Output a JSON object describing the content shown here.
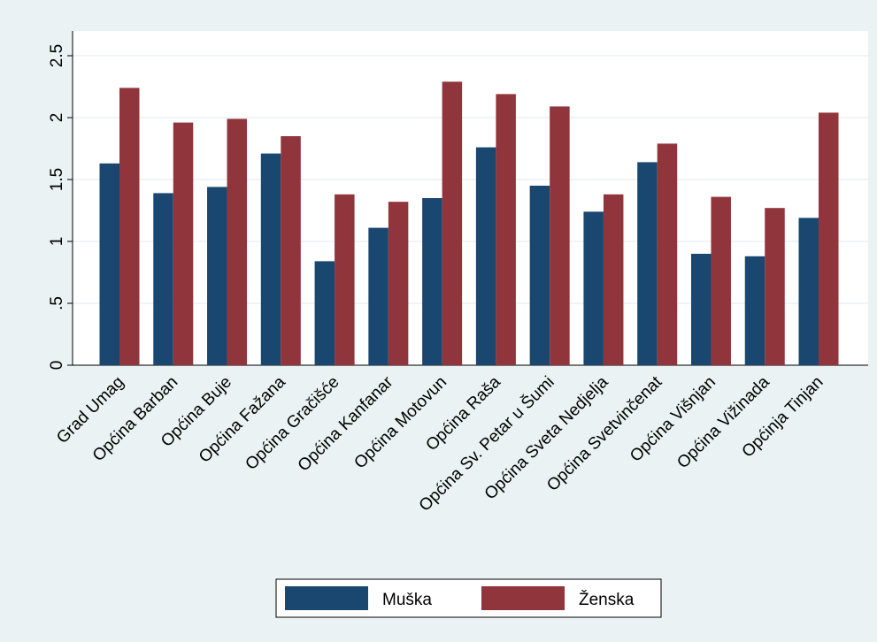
{
  "chart_data": {
    "type": "bar",
    "categories": [
      "Grad Umag",
      "Općina Barban",
      "Općina Buje",
      "Općina Fažana",
      "Općina Gračišće",
      "Općina Kanfanar",
      "Općina Motovun",
      "Općina Raša",
      "Općina Sv. Petar u Šumi",
      "Općina Sveta Nedjelja",
      "Općina Svetvinčenat",
      "Općina Višnjan",
      "Općina Vižinada",
      "Općinja Tinjan"
    ],
    "series": [
      {
        "name": "Muška",
        "color": "#1a476f",
        "values": [
          1.63,
          1.39,
          1.44,
          1.71,
          0.84,
          1.11,
          1.35,
          1.76,
          1.45,
          1.24,
          1.64,
          0.9,
          0.88,
          1.19
        ]
      },
      {
        "name": "Ženska",
        "color": "#90353b",
        "values": [
          2.24,
          1.96,
          1.99,
          1.85,
          1.38,
          1.32,
          2.29,
          2.19,
          2.09,
          1.38,
          1.79,
          1.36,
          1.27,
          2.04
        ]
      }
    ],
    "ylim": [
      0,
      2.7
    ],
    "yticks": [
      0,
      {
        "value": 0.5,
        "label": ".5"
      },
      1,
      1.5,
      2,
      2.5
    ],
    "grid": true
  }
}
